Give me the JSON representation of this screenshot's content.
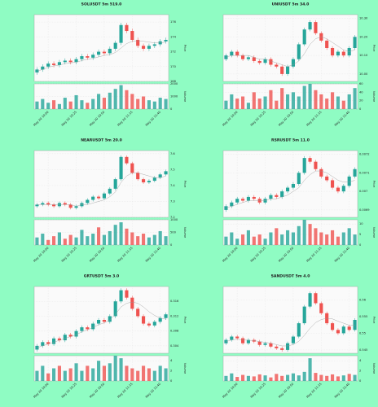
{
  "chart_data": [
    {
      "type": "candlestick",
      "title": "SOLUSDT 5m 519.0",
      "ylabel": "Price",
      "vlabel": "Volume",
      "grid": true,
      "up_color": "#26a69a",
      "down_color": "#ef5350",
      "ma_color": "#999999",
      "categories": [
        null,
        null,
        "May 20 10:00",
        null,
        null,
        null,
        null,
        "May 20 10:25",
        null,
        null,
        null,
        null,
        "May 20 10:50",
        null,
        null,
        null,
        null,
        "May 20 11:15",
        null,
        null,
        null,
        null,
        "May 20 11:40",
        null
      ],
      "open": [
        169.2,
        169.6,
        170.0,
        170.4,
        170.2,
        170.6,
        170.8,
        170.6,
        171.0,
        171.4,
        171.2,
        171.6,
        172.0,
        171.8,
        172.4,
        173.2,
        175.6,
        174.8,
        173.6,
        172.8,
        172.4,
        172.8,
        173.0,
        173.4
      ],
      "high": [
        169.9,
        170.3,
        170.7,
        170.7,
        170.9,
        171.1,
        171.1,
        171.3,
        171.7,
        171.7,
        171.9,
        172.3,
        172.3,
        172.7,
        173.5,
        175.9,
        175.9,
        175.1,
        173.9,
        173.1,
        173.1,
        173.3,
        173.7,
        173.9
      ],
      "low": [
        168.9,
        169.3,
        169.7,
        169.9,
        169.9,
        170.3,
        170.3,
        170.3,
        170.7,
        170.9,
        170.9,
        171.3,
        171.5,
        171.5,
        172.1,
        172.9,
        174.5,
        173.3,
        172.5,
        172.1,
        172.1,
        172.5,
        172.7,
        173.1
      ],
      "close": [
        169.6,
        170.0,
        170.4,
        170.2,
        170.6,
        170.8,
        170.6,
        171.0,
        171.4,
        171.2,
        171.6,
        172.0,
        171.8,
        172.4,
        173.2,
        175.6,
        174.8,
        173.6,
        172.8,
        172.4,
        172.8,
        173.0,
        173.4,
        173.6
      ],
      "volume": [
        600,
        800,
        500,
        700,
        400,
        900,
        600,
        1100,
        700,
        500,
        800,
        1200,
        900,
        1300,
        1600,
        1900,
        1500,
        1200,
        800,
        1000,
        700,
        600,
        900,
        800
      ],
      "ma": [
        169.4,
        169.6,
        169.9,
        170.1,
        170.2,
        170.4,
        170.5,
        170.6,
        170.8,
        171.0,
        171.1,
        171.3,
        171.5,
        171.6,
        171.9,
        172.5,
        173.1,
        173.4,
        173.5,
        173.4,
        173.3,
        173.2,
        173.2,
        173.3
      ],
      "ylim": [
        168,
        177
      ],
      "yticks": [
        168,
        170,
        172,
        174,
        176
      ],
      "vlim": [
        0,
        2000
      ],
      "vticks": [
        0,
        1000,
        2000
      ]
    },
    {
      "type": "candlestick",
      "title": "UNIUSDT 5m 34.0",
      "ylabel": "Price",
      "vlabel": "Volume",
      "grid": true,
      "up_color": "#26a69a",
      "down_color": "#ef5350",
      "ma_color": "#999999",
      "categories": [
        null,
        null,
        "May 20 10:00",
        null,
        null,
        null,
        null,
        "May 20 10:25",
        null,
        null,
        null,
        null,
        "May 20 10:50",
        null,
        null,
        null,
        null,
        "May 20 11:15",
        null,
        null,
        null,
        null,
        "May 20 11:40",
        null
      ],
      "open": [
        10.08,
        10.1,
        10.12,
        10.1,
        10.08,
        10.09,
        10.07,
        10.06,
        10.08,
        10.05,
        10.04,
        10.0,
        10.04,
        10.08,
        10.16,
        10.24,
        10.28,
        10.22,
        10.18,
        10.14,
        10.1,
        10.12,
        10.1,
        10.14
      ],
      "high": [
        10.11,
        10.13,
        10.13,
        10.11,
        10.1,
        10.1,
        10.08,
        10.09,
        10.09,
        10.06,
        10.05,
        10.05,
        10.09,
        10.17,
        10.25,
        10.29,
        10.29,
        10.23,
        10.19,
        10.15,
        10.13,
        10.13,
        10.15,
        10.21
      ],
      "low": [
        10.07,
        10.09,
        10.09,
        10.07,
        10.07,
        10.06,
        10.05,
        10.05,
        10.04,
        10.03,
        9.99,
        9.99,
        10.03,
        10.07,
        10.15,
        10.23,
        10.21,
        10.17,
        10.13,
        10.09,
        10.09,
        10.09,
        10.09,
        10.13
      ],
      "close": [
        10.1,
        10.12,
        10.1,
        10.08,
        10.09,
        10.07,
        10.06,
        10.08,
        10.05,
        10.04,
        10.0,
        10.04,
        10.08,
        10.16,
        10.24,
        10.28,
        10.22,
        10.18,
        10.14,
        10.1,
        10.12,
        10.1,
        10.14,
        10.2
      ],
      "volume": [
        20,
        35,
        25,
        30,
        15,
        40,
        25,
        30,
        45,
        20,
        50,
        35,
        40,
        30,
        55,
        60,
        45,
        35,
        25,
        40,
        30,
        20,
        35,
        50
      ],
      "ma": [
        10.09,
        10.1,
        10.1,
        10.1,
        10.1,
        10.09,
        10.08,
        10.08,
        10.07,
        10.06,
        10.05,
        10.04,
        10.05,
        10.07,
        10.11,
        10.16,
        10.19,
        10.2,
        10.19,
        10.17,
        10.15,
        10.13,
        10.12,
        10.13
      ],
      "ylim": [
        9.96,
        10.32
      ],
      "yticks": [
        {
          "value": 10,
          "label": "10.00"
        },
        {
          "value": 10.1,
          "label": "10.10"
        },
        {
          "value": 10.2,
          "label": "10.20"
        },
        {
          "value": 10.3,
          "label": "10.30"
        }
      ],
      "vlim": [
        0,
        60
      ],
      "vticks": [
        0,
        20,
        40,
        60
      ]
    },
    {
      "type": "candlestick",
      "title": "NEARUSDT 5m 20.0",
      "ylabel": "Price",
      "vlabel": "Volume",
      "grid": true,
      "up_color": "#26a69a",
      "down_color": "#ef5350",
      "ma_color": "#999999",
      "categories": [
        null,
        null,
        "May 20 10:00",
        null,
        null,
        null,
        null,
        "May 20 10:25",
        null,
        null,
        null,
        null,
        "May 20 10:50",
        null,
        null,
        null,
        null,
        "May 20 11:15",
        null,
        null,
        null,
        null,
        "May 20 11:40",
        null
      ],
      "open": [
        7.27,
        7.28,
        7.29,
        7.28,
        7.27,
        7.29,
        7.28,
        7.26,
        7.27,
        7.29,
        7.31,
        7.33,
        7.32,
        7.35,
        7.38,
        7.44,
        7.58,
        7.54,
        7.48,
        7.44,
        7.42,
        7.43,
        7.45,
        7.47
      ],
      "high": [
        7.29,
        7.3,
        7.3,
        7.29,
        7.3,
        7.3,
        7.29,
        7.28,
        7.3,
        7.32,
        7.34,
        7.34,
        7.36,
        7.39,
        7.45,
        7.59,
        7.59,
        7.55,
        7.49,
        7.45,
        7.44,
        7.46,
        7.48,
        7.5
      ],
      "low": [
        7.26,
        7.27,
        7.27,
        7.26,
        7.26,
        7.27,
        7.25,
        7.25,
        7.26,
        7.28,
        7.3,
        7.31,
        7.31,
        7.34,
        7.37,
        7.43,
        7.53,
        7.47,
        7.43,
        7.41,
        7.41,
        7.42,
        7.44,
        7.46
      ],
      "close": [
        7.28,
        7.29,
        7.28,
        7.27,
        7.29,
        7.28,
        7.26,
        7.27,
        7.29,
        7.31,
        7.33,
        7.32,
        7.35,
        7.38,
        7.44,
        7.58,
        7.54,
        7.48,
        7.44,
        7.42,
        7.43,
        7.45,
        7.47,
        7.49
      ],
      "volume": [
        300,
        450,
        200,
        350,
        500,
        250,
        400,
        300,
        600,
        350,
        450,
        700,
        400,
        550,
        800,
        900,
        650,
        500,
        350,
        450,
        300,
        400,
        550,
        350
      ],
      "ma": [
        7.28,
        7.28,
        7.28,
        7.28,
        7.28,
        7.28,
        7.28,
        7.27,
        7.28,
        7.28,
        7.29,
        7.3,
        7.31,
        7.33,
        7.36,
        7.42,
        7.46,
        7.48,
        7.48,
        7.47,
        7.46,
        7.45,
        7.45,
        7.46
      ],
      "ylim": [
        7.2,
        7.62
      ],
      "yticks": [
        7.2,
        7.3,
        7.4,
        7.5,
        7.6
      ],
      "vlim": [
        0,
        1000
      ],
      "vticks": [
        0,
        500,
        1000
      ]
    },
    {
      "type": "candlestick",
      "title": "RSRUSDT 5m 11.0",
      "ylabel": "Price",
      "vlabel": "Volume",
      "grid": true,
      "up_color": "#26a69a",
      "down_color": "#ef5350",
      "ma_color": "#999999",
      "categories": [
        null,
        null,
        "May 20 10:00",
        null,
        null,
        null,
        null,
        "May 20 10:25",
        null,
        null,
        null,
        null,
        "May 20 10:50",
        null,
        null,
        null,
        null,
        "May 20 11:15",
        null,
        null,
        null,
        null,
        "May 20 11:40",
        null
      ],
      "open": [
        0.0069,
        0.00692,
        0.00694,
        0.00696,
        0.00695,
        0.00697,
        0.00696,
        0.00694,
        0.00696,
        0.00698,
        0.00697,
        0.007,
        0.00702,
        0.00704,
        0.0071,
        0.00718,
        0.00716,
        0.00712,
        0.00708,
        0.00706,
        0.00702,
        0.007,
        0.00703,
        0.00708
      ],
      "high": [
        0.00693,
        0.00695,
        0.00697,
        0.00697,
        0.00698,
        0.00698,
        0.00697,
        0.00697,
        0.00699,
        0.00699,
        0.00701,
        0.00703,
        0.00705,
        0.00711,
        0.00719,
        0.00719,
        0.00717,
        0.00713,
        0.00709,
        0.00707,
        0.00703,
        0.00704,
        0.00709,
        0.00713
      ],
      "low": [
        0.00689,
        0.00691,
        0.00693,
        0.00694,
        0.00694,
        0.00695,
        0.00693,
        0.00693,
        0.00695,
        0.00696,
        0.00696,
        0.00699,
        0.00701,
        0.00703,
        0.00709,
        0.00715,
        0.00711,
        0.00707,
        0.00705,
        0.00701,
        0.00699,
        0.00699,
        0.00702,
        0.00707
      ],
      "close": [
        0.00692,
        0.00694,
        0.00696,
        0.00695,
        0.00697,
        0.00696,
        0.00694,
        0.00696,
        0.00698,
        0.00697,
        0.007,
        0.00702,
        0.00704,
        0.0071,
        0.00718,
        0.00716,
        0.00712,
        0.00708,
        0.00706,
        0.00702,
        0.007,
        0.00703,
        0.00708,
        0.00712
      ],
      "volume": [
        4,
        6,
        3,
        5,
        7,
        4,
        5,
        3,
        6,
        8,
        5,
        7,
        6,
        9,
        12,
        10,
        8,
        6,
        5,
        7,
        4,
        6,
        8,
        5
      ],
      "ma": [
        0.00691,
        0.00692,
        0.00693,
        0.00694,
        0.00695,
        0.00695,
        0.00695,
        0.00695,
        0.00696,
        0.00696,
        0.00697,
        0.00698,
        0.007,
        0.00702,
        0.00706,
        0.00709,
        0.00711,
        0.00711,
        0.0071,
        0.00708,
        0.00706,
        0.00705,
        0.00705,
        0.00706
      ],
      "ylim": [
        0.00686,
        0.00722
      ],
      "yticks": [
        0.0069,
        0.007,
        0.0071,
        0.0072
      ],
      "vlim": [
        0,
        12
      ],
      "vticks": [
        0,
        5,
        10
      ]
    },
    {
      "type": "candlestick",
      "title": "GRTUSDT 5m 3.0",
      "ylabel": "Price",
      "vlabel": "Volume",
      "grid": true,
      "up_color": "#26a69a",
      "down_color": "#ef5350",
      "ma_color": "#999999",
      "categories": [
        null,
        null,
        "May 20 10:00",
        null,
        null,
        null,
        null,
        "May 20 10:25",
        null,
        null,
        null,
        null,
        "May 20 10:50",
        null,
        null,
        null,
        null,
        "May 20 11:15",
        null,
        null,
        null,
        null,
        "May 20 11:40",
        null
      ],
      "open": [
        0.303,
        0.304,
        0.305,
        0.3045,
        0.306,
        0.3055,
        0.307,
        0.3065,
        0.308,
        0.309,
        0.3085,
        0.31,
        0.311,
        0.3105,
        0.312,
        0.316,
        0.319,
        0.317,
        0.314,
        0.312,
        0.31,
        0.3095,
        0.3105,
        0.3115
      ],
      "high": [
        0.3045,
        0.3055,
        0.3055,
        0.3065,
        0.3065,
        0.3075,
        0.3075,
        0.3085,
        0.3095,
        0.3095,
        0.3105,
        0.3115,
        0.3115,
        0.3125,
        0.3165,
        0.3195,
        0.3195,
        0.3175,
        0.3145,
        0.3125,
        0.3105,
        0.311,
        0.312,
        0.313
      ],
      "low": [
        0.3025,
        0.3035,
        0.304,
        0.304,
        0.305,
        0.305,
        0.306,
        0.306,
        0.3075,
        0.308,
        0.308,
        0.3095,
        0.31,
        0.31,
        0.3115,
        0.3155,
        0.3165,
        0.3135,
        0.3115,
        0.3095,
        0.309,
        0.309,
        0.31,
        0.311
      ],
      "close": [
        0.304,
        0.305,
        0.3045,
        0.306,
        0.3055,
        0.307,
        0.3065,
        0.308,
        0.309,
        0.3085,
        0.31,
        0.311,
        0.3105,
        0.312,
        0.316,
        0.319,
        0.317,
        0.314,
        0.312,
        0.31,
        0.3095,
        0.3105,
        0.3115,
        0.3125
      ],
      "volume": [
        2,
        3,
        1.5,
        2.5,
        3,
        2,
        2.5,
        3.5,
        2,
        3,
        2.5,
        4,
        3,
        3.5,
        5,
        4.5,
        3,
        2.5,
        2,
        3,
        2.5,
        2,
        3,
        2.5
      ],
      "ma": [
        0.3035,
        0.304,
        0.3045,
        0.305,
        0.3055,
        0.306,
        0.3065,
        0.307,
        0.3078,
        0.3083,
        0.309,
        0.3097,
        0.3102,
        0.311,
        0.3125,
        0.3145,
        0.3155,
        0.3158,
        0.3155,
        0.3145,
        0.3132,
        0.3122,
        0.3115,
        0.3112
      ],
      "ylim": [
        0.302,
        0.32
      ],
      "yticks": [
        0.304,
        0.308,
        0.312,
        0.316
      ],
      "vlim": [
        0,
        5
      ],
      "vticks": [
        0,
        2,
        4
      ]
    },
    {
      "type": "candlestick",
      "title": "SANDUSDT 5m 4.0",
      "ylabel": "Price",
      "vlabel": "Volume",
      "grid": true,
      "up_color": "#26a69a",
      "down_color": "#ef5350",
      "ma_color": "#999999",
      "categories": [
        null,
        null,
        "May 20 10:00",
        null,
        null,
        null,
        null,
        "May 20 10:25",
        null,
        null,
        null,
        null,
        "May 20 10:50",
        null,
        null,
        null,
        null,
        "May 20 11:15",
        null,
        null,
        null,
        null,
        "May 20 11:40",
        null
      ],
      "open": [
        0.547,
        0.548,
        0.549,
        0.5485,
        0.547,
        0.548,
        0.5475,
        0.5465,
        0.547,
        0.546,
        0.5455,
        0.545,
        0.547,
        0.549,
        0.553,
        0.558,
        0.562,
        0.559,
        0.556,
        0.553,
        0.551,
        0.55,
        0.552,
        0.551
      ],
      "high": [
        0.5485,
        0.5495,
        0.5495,
        0.549,
        0.5485,
        0.5485,
        0.548,
        0.5475,
        0.5475,
        0.5465,
        0.546,
        0.5475,
        0.5495,
        0.5535,
        0.5585,
        0.5625,
        0.5625,
        0.5595,
        0.5565,
        0.5535,
        0.5515,
        0.5525,
        0.5525,
        0.5545
      ],
      "low": [
        0.5465,
        0.5475,
        0.548,
        0.5465,
        0.5465,
        0.547,
        0.546,
        0.546,
        0.5455,
        0.545,
        0.5445,
        0.5445,
        0.5465,
        0.5485,
        0.5525,
        0.5575,
        0.5585,
        0.5555,
        0.5525,
        0.5505,
        0.5495,
        0.5495,
        0.5505,
        0.5505
      ],
      "close": [
        0.548,
        0.549,
        0.5485,
        0.547,
        0.548,
        0.5475,
        0.5465,
        0.547,
        0.546,
        0.5455,
        0.545,
        0.547,
        0.549,
        0.553,
        0.558,
        0.562,
        0.559,
        0.556,
        0.553,
        0.551,
        0.55,
        0.552,
        0.551,
        0.554
      ],
      "volume": [
        1,
        1.5,
        0.8,
        1.2,
        1,
        0.9,
        1.3,
        1.1,
        0.7,
        1.4,
        1,
        1.2,
        1.5,
        1.1,
        1.8,
        4.5,
        1.6,
        1.2,
        1,
        1.3,
        0.9,
        1.1,
        1.4,
        1.2
      ],
      "ma": [
        0.5475,
        0.548,
        0.5482,
        0.548,
        0.5479,
        0.5478,
        0.5475,
        0.5473,
        0.547,
        0.5466,
        0.5462,
        0.5462,
        0.5466,
        0.5476,
        0.5494,
        0.5515,
        0.5532,
        0.5541,
        0.5545,
        0.5543,
        0.5536,
        0.553,
        0.5524,
        0.5524
      ],
      "ylim": [
        0.544,
        0.564
      ],
      "yticks": [
        0.545,
        0.55,
        0.555,
        0.56
      ],
      "vlim": [
        0,
        5
      ],
      "vticks": [
        0,
        2,
        4
      ]
    }
  ]
}
